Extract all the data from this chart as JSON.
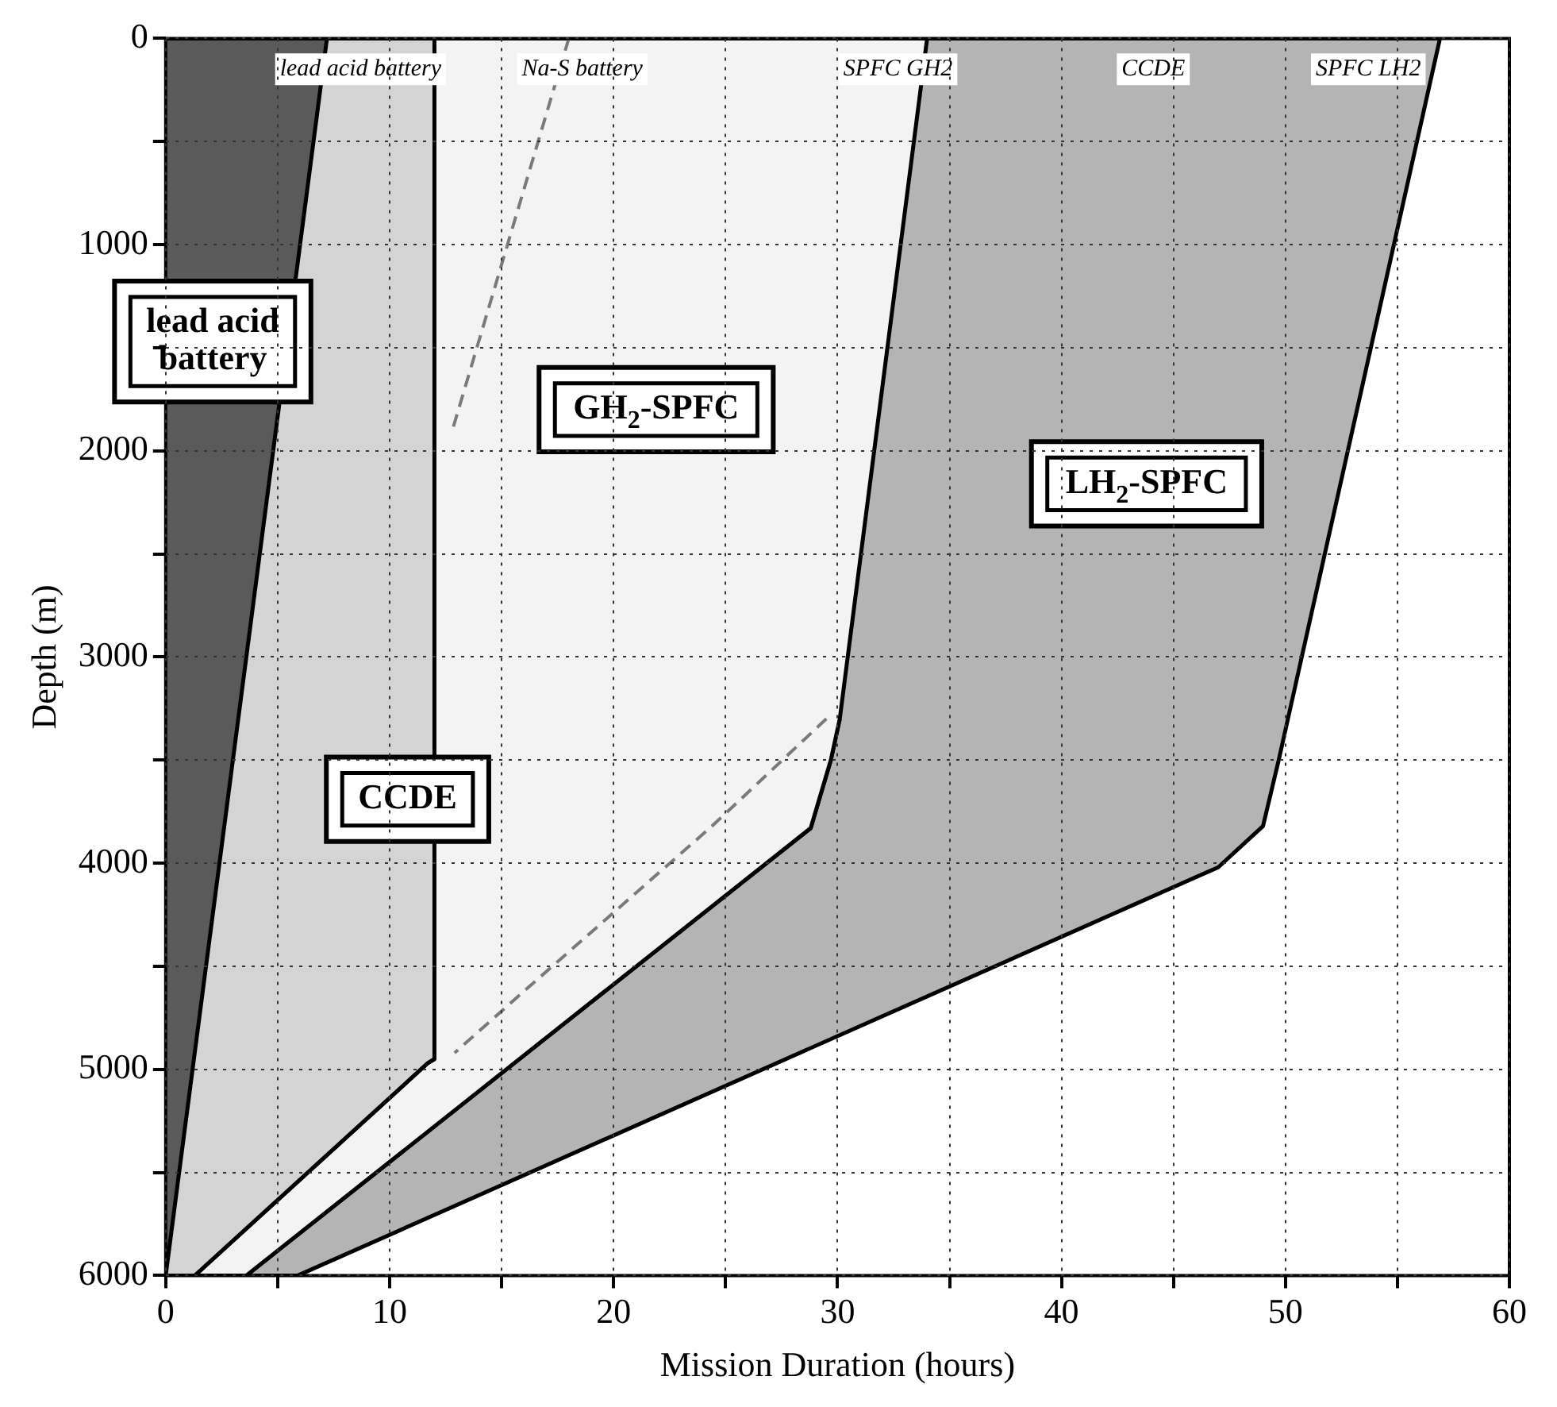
{
  "chart_data": {
    "type": "area",
    "xlabel": "Mission Duration (hours)",
    "ylabel": "Depth (m)",
    "xlim": [
      0,
      60
    ],
    "ylim": [
      6000,
      0
    ],
    "xticks": [
      0,
      {
        "value": 5,
        "label": null
      },
      10,
      {
        "value": 15,
        "label": null
      },
      20,
      {
        "value": 25,
        "label": null
      },
      30,
      {
        "value": 35,
        "label": null
      },
      40,
      {
        "value": 45,
        "label": null
      },
      50,
      {
        "value": 55,
        "label": null
      },
      60
    ],
    "yticks": [
      0,
      {
        "value": 500,
        "label": null
      },
      1000,
      {
        "value": 1500,
        "label": null
      },
      2000,
      {
        "value": 2500,
        "label": null
      },
      3000,
      {
        "value": 3500,
        "label": null
      },
      4000,
      {
        "value": 4500,
        "label": null
      },
      5000,
      {
        "value": 5500,
        "label": null
      },
      6000
    ],
    "grid": true,
    "legend": false,
    "series": [
      {
        "color": "#5a5a5a",
        "x": [
          0,
          7.2,
          0
        ],
        "values": [
          0,
          0,
          6000
        ]
      },
      {
        "color": "#d4d4d4",
        "x": [
          7.2,
          12,
          12,
          11.7,
          1.3,
          0
        ],
        "values": [
          0,
          0,
          4950,
          4970,
          6000,
          6000
        ]
      },
      {
        "color": "#f3f3f3",
        "x": [
          12,
          34,
          30.1,
          29.7,
          28.8,
          3.6,
          1.3,
          11.7,
          12
        ],
        "values": [
          0,
          0,
          3300,
          3500,
          3830,
          6000,
          6000,
          4970,
          4950
        ]
      },
      {
        "color": "#b4b4b4",
        "x": [
          34,
          56.9,
          49.7,
          49,
          47,
          5.9,
          3.6,
          28.8,
          29.7,
          30.1
        ],
        "values": [
          0,
          0,
          3500,
          3820,
          4020,
          6000,
          6000,
          3830,
          3500,
          3300
        ]
      },
      {
        "type": "line",
        "line_style": "dashed",
        "color": "#7a7a7a",
        "x": [
          18,
          12.8
        ],
        "values": [
          0,
          1900
        ]
      },
      {
        "type": "line",
        "line_style": "dashed",
        "color": "#7a7a7a",
        "x": [
          29.5,
          24.4,
          15.8,
          12.9
        ],
        "values": [
          3300,
          3820,
          4640,
          4920
        ]
      }
    ],
    "annotations": [
      "lead acid battery",
      "Na-S battery",
      "SPFC GH2",
      "CCDE",
      "SPFC LH2",
      "lead acid\nbattery",
      "GH$_{2}$-SPFC",
      "LH$_{2}$-SPFC",
      "CCDE"
    ]
  }
}
